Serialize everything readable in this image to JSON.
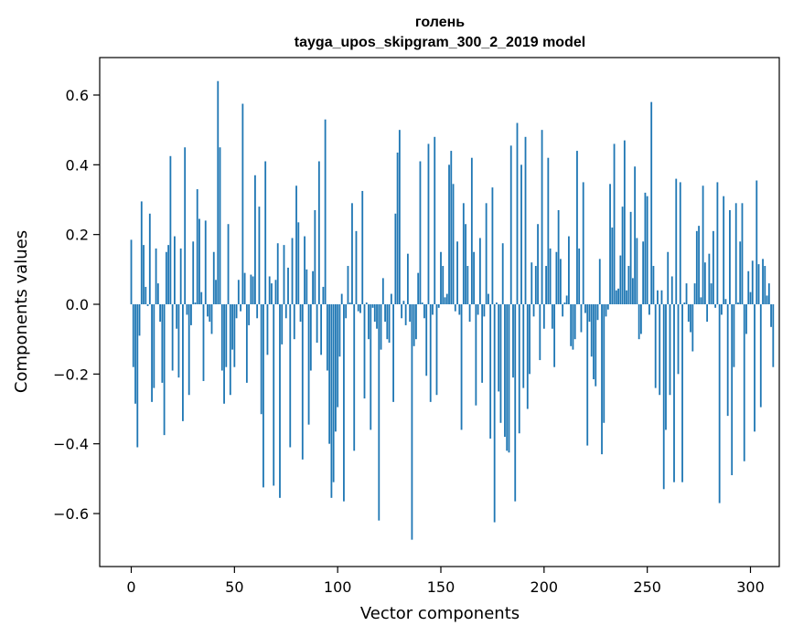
{
  "chart_data": {
    "type": "bar",
    "title": "голень",
    "subtitle": "tayga_upos_skipgram_300_2_2019 model",
    "xlabel": "Vector components",
    "ylabel": "Components values",
    "xlim": [
      -15,
      314
    ],
    "ylim": [
      -0.75,
      0.7
    ],
    "xticks": [
      0,
      50,
      100,
      150,
      200,
      250,
      300
    ],
    "yticks": [
      -0.6,
      -0.4,
      -0.2,
      0.0,
      0.2,
      0.4,
      0.6
    ],
    "ytick_labels": [
      "−0.6",
      "−0.4",
      "−0.2",
      "0.0",
      "0.2",
      "0.4",
      "0.6"
    ],
    "grid": false,
    "bar_color": "#1f77b4",
    "values": [
      0.185,
      -0.18,
      -0.285,
      -0.41,
      -0.09,
      0.295,
      0.17,
      0.05,
      -0.005,
      0.26,
      -0.28,
      -0.24,
      0.16,
      0.06,
      -0.05,
      -0.225,
      -0.375,
      0.15,
      0.17,
      0.425,
      -0.19,
      0.195,
      -0.07,
      -0.21,
      0.16,
      -0.335,
      0.45,
      -0.03,
      -0.26,
      -0.06,
      0.18,
      0.005,
      0.33,
      0.245,
      0.035,
      -0.22,
      0.24,
      -0.035,
      -0.05,
      -0.085,
      0.15,
      0.07,
      0.64,
      0.45,
      -0.19,
      -0.285,
      -0.18,
      0.23,
      -0.26,
      -0.13,
      -0.18,
      -0.04,
      0.07,
      -0.02,
      0.575,
      0.09,
      -0.225,
      -0.06,
      0.085,
      0.08,
      0.37,
      -0.04,
      0.28,
      -0.315,
      -0.525,
      0.41,
      -0.145,
      0.08,
      0.06,
      -0.52,
      0.07,
      0.175,
      -0.555,
      -0.115,
      0.17,
      -0.04,
      0.105,
      -0.41,
      0.19,
      -0.1,
      0.34,
      0.235,
      -0.05,
      -0.445,
      0.195,
      0.1,
      -0.345,
      -0.19,
      0.095,
      0.27,
      -0.11,
      0.41,
      -0.145,
      0.05,
      0.53,
      -0.19,
      -0.4,
      -0.555,
      -0.51,
      -0.365,
      -0.295,
      -0.15,
      0.03,
      -0.565,
      -0.04,
      0.11,
      0.005,
      0.29,
      -0.42,
      0.21,
      -0.02,
      -0.025,
      0.325,
      -0.27,
      0.005,
      -0.1,
      -0.36,
      -0.01,
      -0.05,
      -0.07,
      -0.62,
      -0.13,
      0.075,
      -0.05,
      -0.1,
      -0.11,
      0.03,
      -0.28,
      0.26,
      0.435,
      0.5,
      -0.04,
      0.01,
      -0.06,
      0.145,
      -0.05,
      -0.675,
      -0.12,
      -0.1,
      0.09,
      0.41,
      0.005,
      -0.04,
      -0.205,
      0.46,
      -0.28,
      -0.03,
      0.48,
      -0.26,
      -0.01,
      0.15,
      0.11,
      0.02,
      0.03,
      0.4,
      0.44,
      0.345,
      -0.02,
      0.18,
      -0.03,
      -0.36,
      0.29,
      0.23,
      0.11,
      -0.05,
      0.42,
      0.15,
      -0.29,
      -0.03,
      0.19,
      -0.225,
      -0.035,
      0.29,
      0.03,
      -0.385,
      0.335,
      -0.625,
      0.005,
      -0.25,
      -0.34,
      0.175,
      -0.38,
      -0.42,
      -0.425,
      0.455,
      -0.21,
      -0.565,
      0.52,
      -0.37,
      0.4,
      -0.24,
      0.48,
      -0.3,
      -0.2,
      0.12,
      -0.035,
      0.11,
      0.23,
      -0.16,
      0.5,
      -0.07,
      0.11,
      0.42,
      0.16,
      -0.07,
      -0.18,
      0.15,
      0.27,
      0.13,
      -0.035,
      0.005,
      0.025,
      0.195,
      -0.12,
      -0.13,
      -0.1,
      0.44,
      0.16,
      -0.08,
      0.35,
      -0.025,
      -0.405,
      -0.05,
      -0.15,
      -0.215,
      -0.235,
      -0.045,
      0.13,
      -0.43,
      -0.34,
      -0.035,
      -0.015,
      0.345,
      0.22,
      0.46,
      0.04,
      0.045,
      0.14,
      0.28,
      0.47,
      0.04,
      0.11,
      0.265,
      0.075,
      0.395,
      0.19,
      -0.1,
      -0.085,
      0.18,
      0.32,
      0.31,
      -0.03,
      0.58,
      0.11,
      -0.24,
      0.04,
      -0.26,
      0.04,
      -0.53,
      -0.36,
      0.15,
      -0.26,
      0.08,
      -0.51,
      0.36,
      -0.2,
      0.35,
      -0.51,
      0.005,
      0.06,
      -0.05,
      -0.08,
      -0.135,
      0.06,
      0.21,
      0.225,
      0.02,
      0.34,
      0.12,
      -0.05,
      0.145,
      0.06,
      0.21,
      -0.01,
      0.35,
      -0.57,
      -0.03,
      0.31,
      0.015,
      -0.32,
      0.27,
      -0.49,
      -0.18,
      0.29,
      0.005,
      0.18,
      0.29,
      -0.45,
      -0.085,
      0.095,
      0.035,
      0.125,
      -0.365,
      0.355,
      0.115,
      -0.295,
      0.13,
      0.11,
      0.025,
      0.06,
      -0.065,
      -0.18
    ]
  }
}
